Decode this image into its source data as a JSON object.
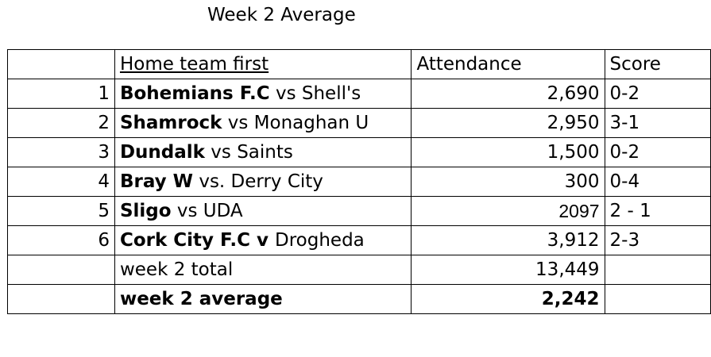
{
  "title": "Week 2 Average",
  "header": {
    "num": "",
    "match": "Home team first",
    "attendance": "Attendance",
    "score": "Score"
  },
  "rows": [
    {
      "num": "1",
      "home": "Bohemians F.C",
      "sep": " vs ",
      "away": "Shell's",
      "attendance": "2,690",
      "score": "0-2"
    },
    {
      "num": "2",
      "home": "Shamrock",
      "sep": " vs ",
      "away": "Monaghan U",
      "attendance": "2,950",
      "score": "3-1"
    },
    {
      "num": "3",
      "home": "Dundalk",
      "sep": " vs ",
      "away": "Saints",
      "attendance": "1,500",
      "score": "0-2"
    },
    {
      "num": "4",
      "home": "Bray W",
      "sep": " vs. ",
      "away": "Derry City",
      "attendance": "300",
      "score": "0-4"
    },
    {
      "num": "5",
      "home": "Sligo",
      "sep": " vs ",
      "away": "UDA",
      "attendance": "2097",
      "score": "2 - 1"
    },
    {
      "num": "6",
      "home": "Cork City F.C",
      "sep": " v ",
      "away": "Drogheda",
      "attendance": "3,912",
      "score": "2-3"
    }
  ],
  "total": {
    "label": "week 2 total",
    "value": "13,449"
  },
  "average": {
    "label": "week 2 average",
    "value": "2,242"
  }
}
